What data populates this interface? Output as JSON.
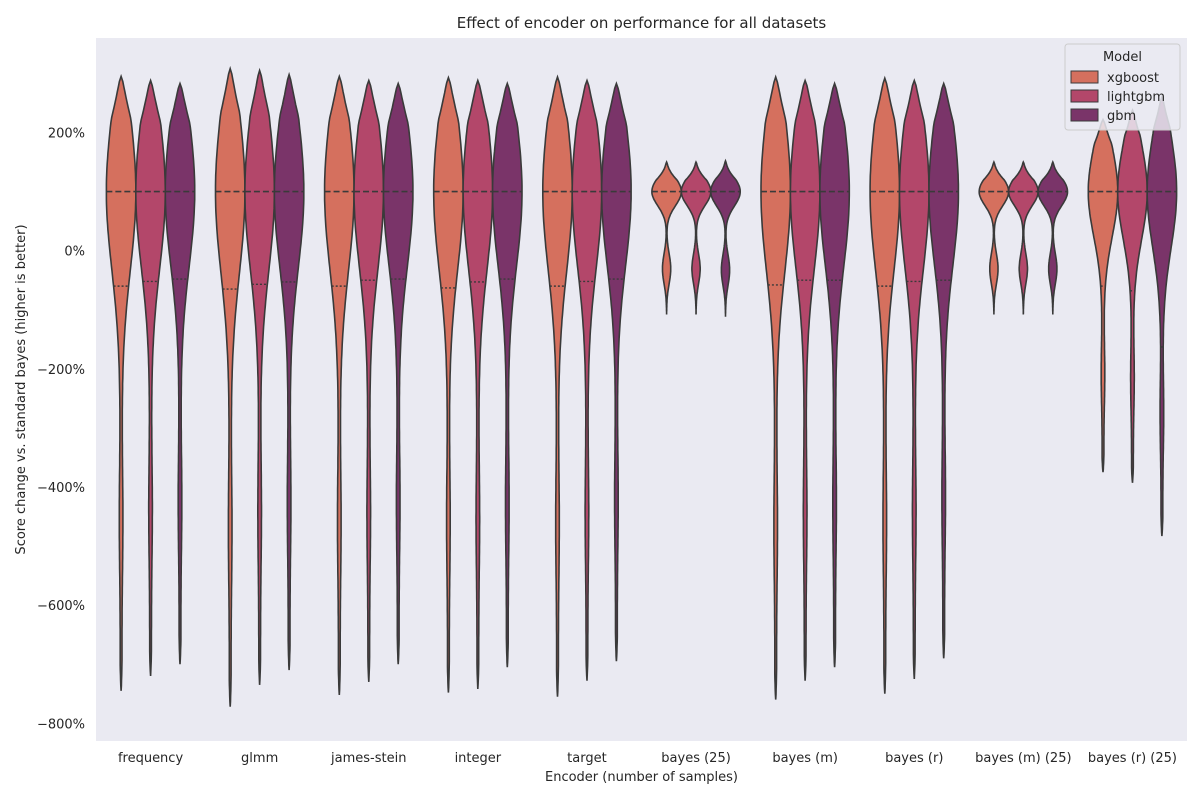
{
  "chart_data": {
    "type": "violin",
    "title": "Effect of encoder on performance for all datasets",
    "xlabel": "Encoder (number of samples)",
    "ylabel": "Score change vs. standard bayes (higher is better)",
    "ylim": [
      -830,
      360
    ],
    "yticks": [
      -800,
      -600,
      -400,
      -200,
      0,
      200
    ],
    "ytick_suffix": "%",
    "grid": false,
    "background": "#eaeaf2",
    "categories": [
      "frequency",
      "glmm",
      "james-stein",
      "integer",
      "target",
      "bayes (25)",
      "bayes (m)",
      "bayes (r)",
      "bayes (m) (25)",
      "bayes (r) (25)"
    ],
    "legend": {
      "title": "Model",
      "placement": "top-right"
    },
    "series": [
      {
        "name": "xgboost",
        "color": "#d5705e"
      },
      {
        "name": "lightgbm",
        "color": "#b3476a"
      },
      {
        "name": "gbm",
        "color": "#7a3469"
      }
    ],
    "violins": [
      [
        {
          "min": -745,
          "max": 295,
          "median": 100,
          "q1": -60
        },
        {
          "min": -720,
          "max": 288,
          "median": 100,
          "q1": -52
        },
        {
          "min": -700,
          "max": 283,
          "median": 100,
          "q1": -48
        }
      ],
      [
        {
          "min": -772,
          "max": 308,
          "median": 100,
          "q1": -65
        },
        {
          "min": -735,
          "max": 305,
          "median": 100,
          "q1": -57
        },
        {
          "min": -710,
          "max": 298,
          "median": 100,
          "q1": -53
        }
      ],
      [
        {
          "min": -752,
          "max": 295,
          "median": 100,
          "q1": -60
        },
        {
          "min": -730,
          "max": 288,
          "median": 100,
          "q1": -50
        },
        {
          "min": -700,
          "max": 283,
          "median": 100,
          "q1": -48
        }
      ],
      [
        {
          "min": -748,
          "max": 293,
          "median": 100,
          "q1": -63
        },
        {
          "min": -742,
          "max": 288,
          "median": 100,
          "q1": -53
        },
        {
          "min": -705,
          "max": 283,
          "median": 100,
          "q1": -48
        }
      ],
      [
        {
          "min": -755,
          "max": 294,
          "median": 100,
          "q1": -60
        },
        {
          "min": -728,
          "max": 288,
          "median": 100,
          "q1": -52
        },
        {
          "min": -695,
          "max": 283,
          "median": 100,
          "q1": -48
        }
      ],
      [
        {
          "min": -108,
          "max": 150,
          "median": 100,
          "q1": 40
        },
        {
          "min": -108,
          "max": 150,
          "median": 100,
          "q1": 35
        },
        {
          "min": -112,
          "max": 152,
          "median": 100,
          "q1": 20
        }
      ],
      [
        {
          "min": -760,
          "max": 294,
          "median": 100,
          "q1": -58
        },
        {
          "min": -728,
          "max": 288,
          "median": 100,
          "q1": -50
        },
        {
          "min": -705,
          "max": 283,
          "median": 100,
          "q1": -50
        }
      ],
      [
        {
          "min": -750,
          "max": 292,
          "median": 100,
          "q1": -60
        },
        {
          "min": -725,
          "max": 288,
          "median": 100,
          "q1": -52
        },
        {
          "min": -690,
          "max": 283,
          "median": 100,
          "q1": -50
        }
      ],
      [
        {
          "min": -108,
          "max": 150,
          "median": 100,
          "q1": 43
        },
        {
          "min": -108,
          "max": 150,
          "median": 100,
          "q1": 40
        },
        {
          "min": -108,
          "max": 150,
          "median": 100,
          "q1": 25
        }
      ],
      [
        {
          "min": -375,
          "max": 222,
          "median": 100,
          "q1": -60
        },
        {
          "min": -393,
          "max": 238,
          "median": 100,
          "q1": -68
        },
        {
          "min": -483,
          "max": 260,
          "median": 100,
          "q1": -163
        }
      ]
    ]
  }
}
